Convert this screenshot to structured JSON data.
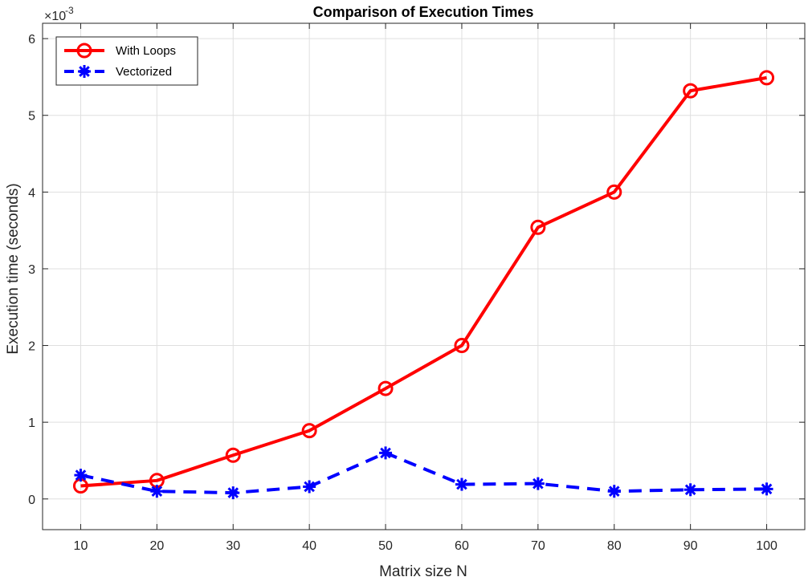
{
  "chart_data": {
    "type": "line",
    "title": "Comparison of Execution Times",
    "xlabel": "Matrix size N",
    "ylabel": "Execution time (seconds)",
    "y_exponent_label": "×10",
    "y_exponent_power": "-3",
    "x": [
      10,
      20,
      30,
      40,
      50,
      60,
      70,
      80,
      90,
      100
    ],
    "xlim": [
      5,
      105
    ],
    "ylim": [
      -0.4,
      6.2
    ],
    "x_ticks": [
      10,
      20,
      30,
      40,
      50,
      60,
      70,
      80,
      90,
      100
    ],
    "y_ticks": [
      0,
      1,
      2,
      3,
      4,
      5,
      6
    ],
    "y_scale_note": "values in units of 1e-3 seconds",
    "grid": true,
    "legend_position": "top-left",
    "series": [
      {
        "name": "With Loops",
        "color": "#ff0000",
        "line_style": "solid",
        "marker": "circle",
        "values": [
          0.17,
          0.24,
          0.57,
          0.89,
          1.44,
          2.0,
          3.54,
          4.0,
          5.32,
          5.49
        ]
      },
      {
        "name": "Vectorized",
        "color": "#0000ff",
        "line_style": "dashed",
        "marker": "asterisk",
        "values": [
          0.31,
          0.1,
          0.08,
          0.16,
          0.6,
          0.19,
          0.2,
          0.1,
          0.12,
          0.13
        ]
      }
    ]
  }
}
